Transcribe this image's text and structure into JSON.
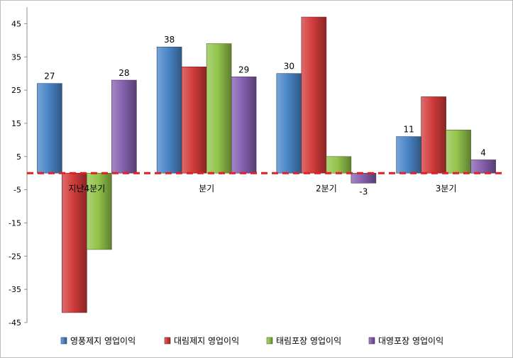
{
  "chart_data": {
    "type": "bar",
    "categories": [
      "지난4분기",
      "분기",
      "2분기",
      "3분기"
    ],
    "series": [
      {
        "name": "영풍제지 영업이익",
        "values": [
          27,
          38,
          30,
          11
        ],
        "labels": [
          "27",
          "38",
          "30",
          "11"
        ],
        "color": "#4a86c8"
      },
      {
        "name": "대림제지 영업이익",
        "values": [
          -42,
          32,
          47,
          23
        ],
        "labels": [
          "",
          "",
          "",
          ""
        ],
        "color": "#d23b3b"
      },
      {
        "name": "태림포장 영업이익",
        "values": [
          -23,
          39,
          5,
          13
        ],
        "labels": [
          "",
          "",
          "",
          ""
        ],
        "color": "#92c34a"
      },
      {
        "name": "대영포장 영업이익",
        "values": [
          28,
          29,
          -3,
          4
        ],
        "labels": [
          "28",
          "29",
          "-3",
          "4"
        ],
        "color": "#8660b0"
      }
    ],
    "y_ticks": [
      45,
      35,
      25,
      15,
      5,
      -5,
      -15,
      -25,
      -35,
      -45
    ],
    "ylim": [
      -45,
      50
    ],
    "grid": false,
    "baseline": {
      "value": 0,
      "color": "#e02020",
      "style": "dashed"
    },
    "legend_position": "bottom"
  }
}
